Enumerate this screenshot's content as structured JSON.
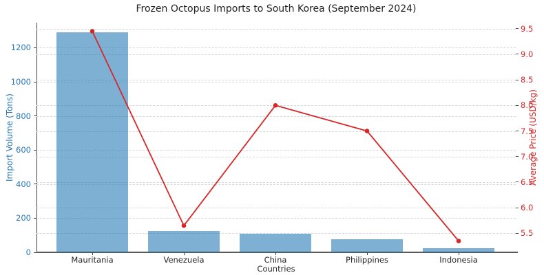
{
  "chart_data": {
    "type": "bar",
    "combo": "bar+line, dual y-axes",
    "title": "Frozen Octopus Imports to South Korea (September 2024)",
    "xlabel": "Countries",
    "categories": [
      "Mauritania",
      "Venezuela",
      "China",
      "Philippines",
      "Indonesia"
    ],
    "series": [
      {
        "name": "Import Volume (Tons)",
        "type": "bar",
        "axis": "left",
        "color": "rgba(31,119,180,0.58)",
        "values": [
          1290,
          125,
          110,
          75,
          25
        ]
      },
      {
        "name": "Average Price (USD/kg)",
        "type": "line",
        "axis": "right",
        "color": "#d62728",
        "marker": "circle",
        "values": [
          9.45,
          5.65,
          8.0,
          7.5,
          5.35
        ]
      }
    ],
    "left_axis": {
      "label": "Import Volume (Tons)",
      "color": "#2878b8",
      "ticks": [
        0,
        200,
        400,
        600,
        800,
        1000,
        1200
      ],
      "min": 0,
      "max": 1347
    },
    "right_axis": {
      "label": "Average Price (USD/kg)",
      "color": "#d62728",
      "ticks": [
        5.5,
        6.0,
        6.5,
        7.0,
        7.5,
        8.0,
        8.5,
        9.0,
        9.5
      ],
      "min": 5.128,
      "max": 9.617
    },
    "grid": {
      "style": "dashed",
      "color": "#d7d7d7"
    },
    "legend": "none"
  }
}
